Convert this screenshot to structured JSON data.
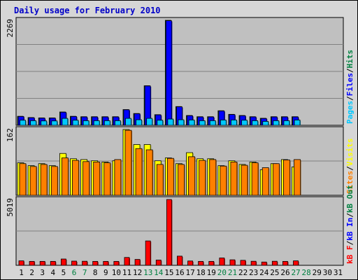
{
  "title": "Daily usage for February 2010",
  "colors": {
    "background": "#d6d6d6",
    "panel": "#c0c0c0",
    "pages": "#00c8ff",
    "files": "#0000ff",
    "hits": "#008040",
    "visits": "#ffff00",
    "sites": "#ff8000",
    "kb_f": "#ff0000",
    "kb_in": "#0000ff",
    "kb_out": "#008040",
    "weekend_label": "#008040",
    "weekday_label": "#000000",
    "title": "#0000c8"
  },
  "chart_data": [
    {
      "type": "bar",
      "name": "hits-files-pages",
      "ymax_label": "2269",
      "ylim": [
        0,
        2269
      ],
      "legend": [
        {
          "text": "Pages",
          "color": "#00c8ff"
        },
        {
          "text": "Files",
          "color": "#0000ff"
        },
        {
          "text": "Hits",
          "color": "#008040"
        }
      ],
      "series": [
        {
          "name": "Hits",
          "values": [
            195,
            168,
            160,
            160,
            288,
            195,
            186,
            186,
            186,
            186,
            340,
            255,
            855,
            230,
            2269,
            405,
            212,
            186,
            186,
            315,
            237,
            212,
            186,
            152,
            186,
            186,
            186,
            0,
            0,
            0,
            0
          ]
        },
        {
          "name": "Files",
          "values": [
            190,
            163,
            155,
            155,
            283,
            190,
            181,
            181,
            181,
            181,
            335,
            250,
            850,
            225,
            2260,
            400,
            207,
            181,
            181,
            310,
            232,
            207,
            181,
            147,
            181,
            181,
            181,
            0,
            0,
            0,
            0
          ]
        },
        {
          "name": "Pages",
          "values": [
            110,
            100,
            95,
            95,
            150,
            110,
            100,
            100,
            100,
            100,
            150,
            120,
            150,
            110,
            135,
            120,
            115,
            100,
            100,
            115,
            115,
            110,
            100,
            85,
            100,
            100,
            115,
            0,
            0,
            0,
            0
          ]
        }
      ]
    },
    {
      "type": "bar",
      "name": "visits-sites",
      "ymax_label": "162",
      "ylim": [
        0,
        162
      ],
      "legend": [
        {
          "text": "Sites",
          "color": "#ff8000"
        },
        {
          "text": "Visits",
          "color": "#ffff00"
        }
      ],
      "series": [
        {
          "name": "Visits",
          "values": [
            80,
            73,
            78,
            73,
            103,
            90,
            88,
            85,
            82,
            85,
            162,
            125,
            125,
            85,
            92,
            78,
            105,
            90,
            90,
            73,
            85,
            76,
            82,
            63,
            78,
            88,
            70,
            0,
            0,
            0,
            0
          ]
        },
        {
          "name": "Sites",
          "values": [
            78,
            71,
            76,
            71,
            92,
            86,
            83,
            82,
            80,
            88,
            160,
            115,
            112,
            76,
            91,
            76,
            95,
            86,
            88,
            72,
            82,
            74,
            80,
            68,
            78,
            87,
            88,
            0,
            0,
            0,
            0
          ]
        }
      ]
    },
    {
      "type": "bar",
      "name": "kbytes",
      "ymax_label": "5019",
      "ylim": [
        0,
        5019
      ],
      "legend": [
        {
          "text": "kB F",
          "color": "#ff0000"
        },
        {
          "text": "kB In",
          "color": "#0000ff"
        },
        {
          "text": "kB Out",
          "color": "#008040"
        }
      ],
      "series": [
        {
          "name": "kB F",
          "values": [
            340,
            300,
            300,
            300,
            480,
            320,
            310,
            300,
            300,
            300,
            600,
            450,
            1860,
            400,
            5019,
            700,
            330,
            300,
            300,
            560,
            420,
            380,
            310,
            250,
            310,
            300,
            340,
            0,
            0,
            0,
            0
          ]
        }
      ]
    }
  ],
  "x_labels": [
    "1",
    "2",
    "3",
    "4",
    "5",
    "6",
    "7",
    "8",
    "9",
    "10",
    "11",
    "12",
    "13",
    "14",
    "15",
    "16",
    "17",
    "18",
    "19",
    "20",
    "21",
    "22",
    "23",
    "24",
    "25",
    "26",
    "27",
    "28",
    "29",
    "30",
    "31"
  ],
  "weekend_days": [
    6,
    7,
    13,
    14,
    20,
    21,
    27,
    28
  ]
}
